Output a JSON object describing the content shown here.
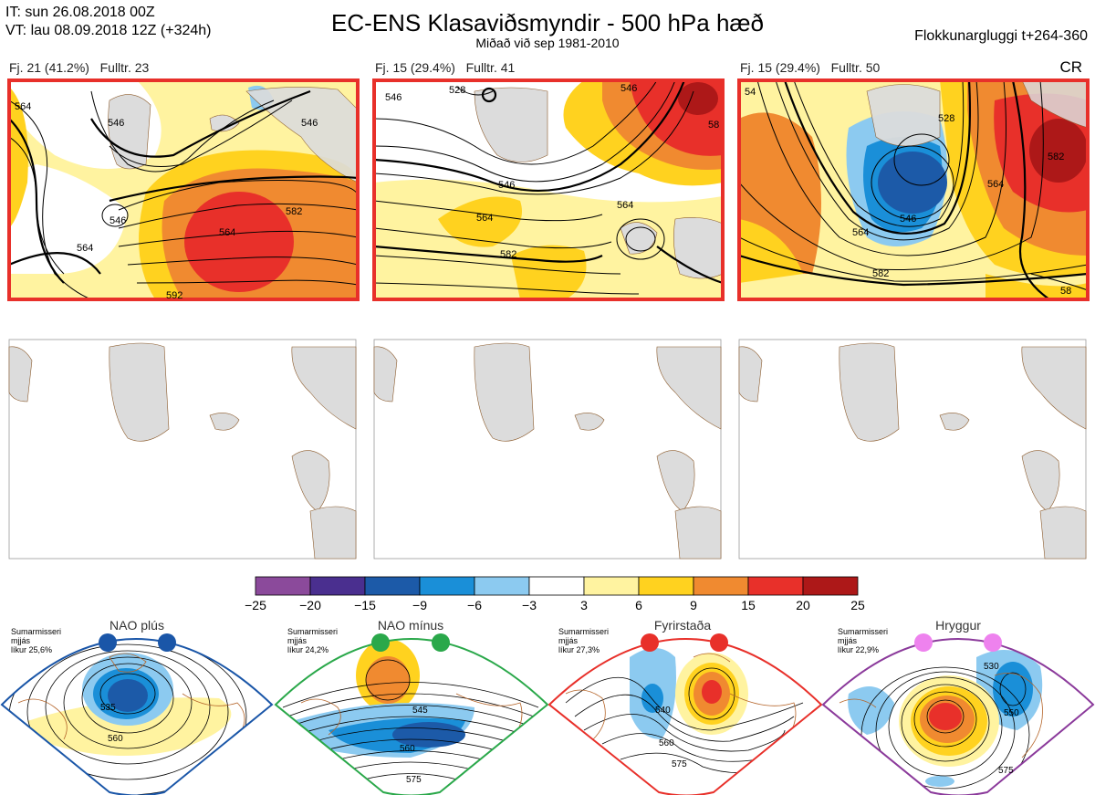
{
  "header": {
    "it_line": "IT: sun 26.08.2018 00Z",
    "vt_line": "VT: lau 08.09.2018 12Z  (+324h)",
    "title": "EC-ENS Klasaviðsmyndir - 500 hPa hæð",
    "subtitle": "Miðað við sep 1981-2010",
    "window": "Flokkunargluggi t+264-360",
    "cr": "CR"
  },
  "colors": {
    "panel_border_highlight": "#e8302a",
    "land": "#dcdcdc",
    "coast": "#8b5a2b",
    "nao_plus": "#1a56a8",
    "nao_minus": "#2aa84a",
    "blocking": "#e8302a",
    "ridge": "#8b3a9b"
  },
  "chart_data": [
    {
      "type": "heatmap",
      "panel": 1,
      "label_fj": "Fj. 21 (41.2%)",
      "label_full": "Fulltr. 23",
      "contour_labels": [
        "564",
        "546",
        "546",
        "564",
        "564",
        "582",
        "546",
        "592"
      ],
      "highlighted": true
    },
    {
      "type": "heatmap",
      "panel": 2,
      "label_fj": "Fj. 15 (29.4%)",
      "label_full": "Fulltr. 41",
      "contour_labels": [
        "528",
        "546",
        "564",
        "546",
        "564",
        "582",
        "546",
        "58"
      ],
      "highlighted": true
    },
    {
      "type": "heatmap",
      "panel": 3,
      "label_fj": "Fj. 15 (29.4%)",
      "label_full": "Fulltr. 50",
      "contour_labels": [
        "528",
        "546",
        "564",
        "582",
        "582",
        "564",
        "58",
        "54"
      ],
      "highlighted": true
    },
    {
      "type": "heatmap",
      "role": "colorbar",
      "ticks": [
        "−25",
        "−20",
        "−15",
        "−9",
        "−6",
        "−3",
        "3",
        "6",
        "9",
        "15",
        "20",
        "25"
      ],
      "colors": [
        "#8b4a9b",
        "#4a2f8f",
        "#1c5aa8",
        "#1a8fd8",
        "#8ccaf0",
        "#ffffff",
        "#fff3a0",
        "#ffd21f",
        "#f08a30",
        "#e8302a",
        "#ad1818"
      ]
    }
  ],
  "regimes": [
    {
      "name": "NAO plús",
      "season": "Sumarmisseri",
      "smooth": "mjjás",
      "prob": "líkur 25,6%",
      "contours": [
        "535",
        "560"
      ],
      "color": "#1a56a8"
    },
    {
      "name": "NAO mínus",
      "season": "Sumarmisseri",
      "smooth": "mjjás",
      "prob": "líkur 24,2%",
      "contours": [
        "545",
        "560",
        "575"
      ],
      "color": "#2aa84a"
    },
    {
      "name": "Fyrirstaða",
      "season": "Sumarmisseri",
      "smooth": "mjjás",
      "prob": "líkur 27,3%",
      "contours": [
        "540",
        "560",
        "575"
      ],
      "color": "#e8302a"
    },
    {
      "name": "Hryggur",
      "season": "Sumarmisseri",
      "smooth": "mjjás",
      "prob": "líkur 22,9%",
      "contours": [
        "530",
        "550",
        "575"
      ],
      "color": "#8b3a9b"
    }
  ]
}
